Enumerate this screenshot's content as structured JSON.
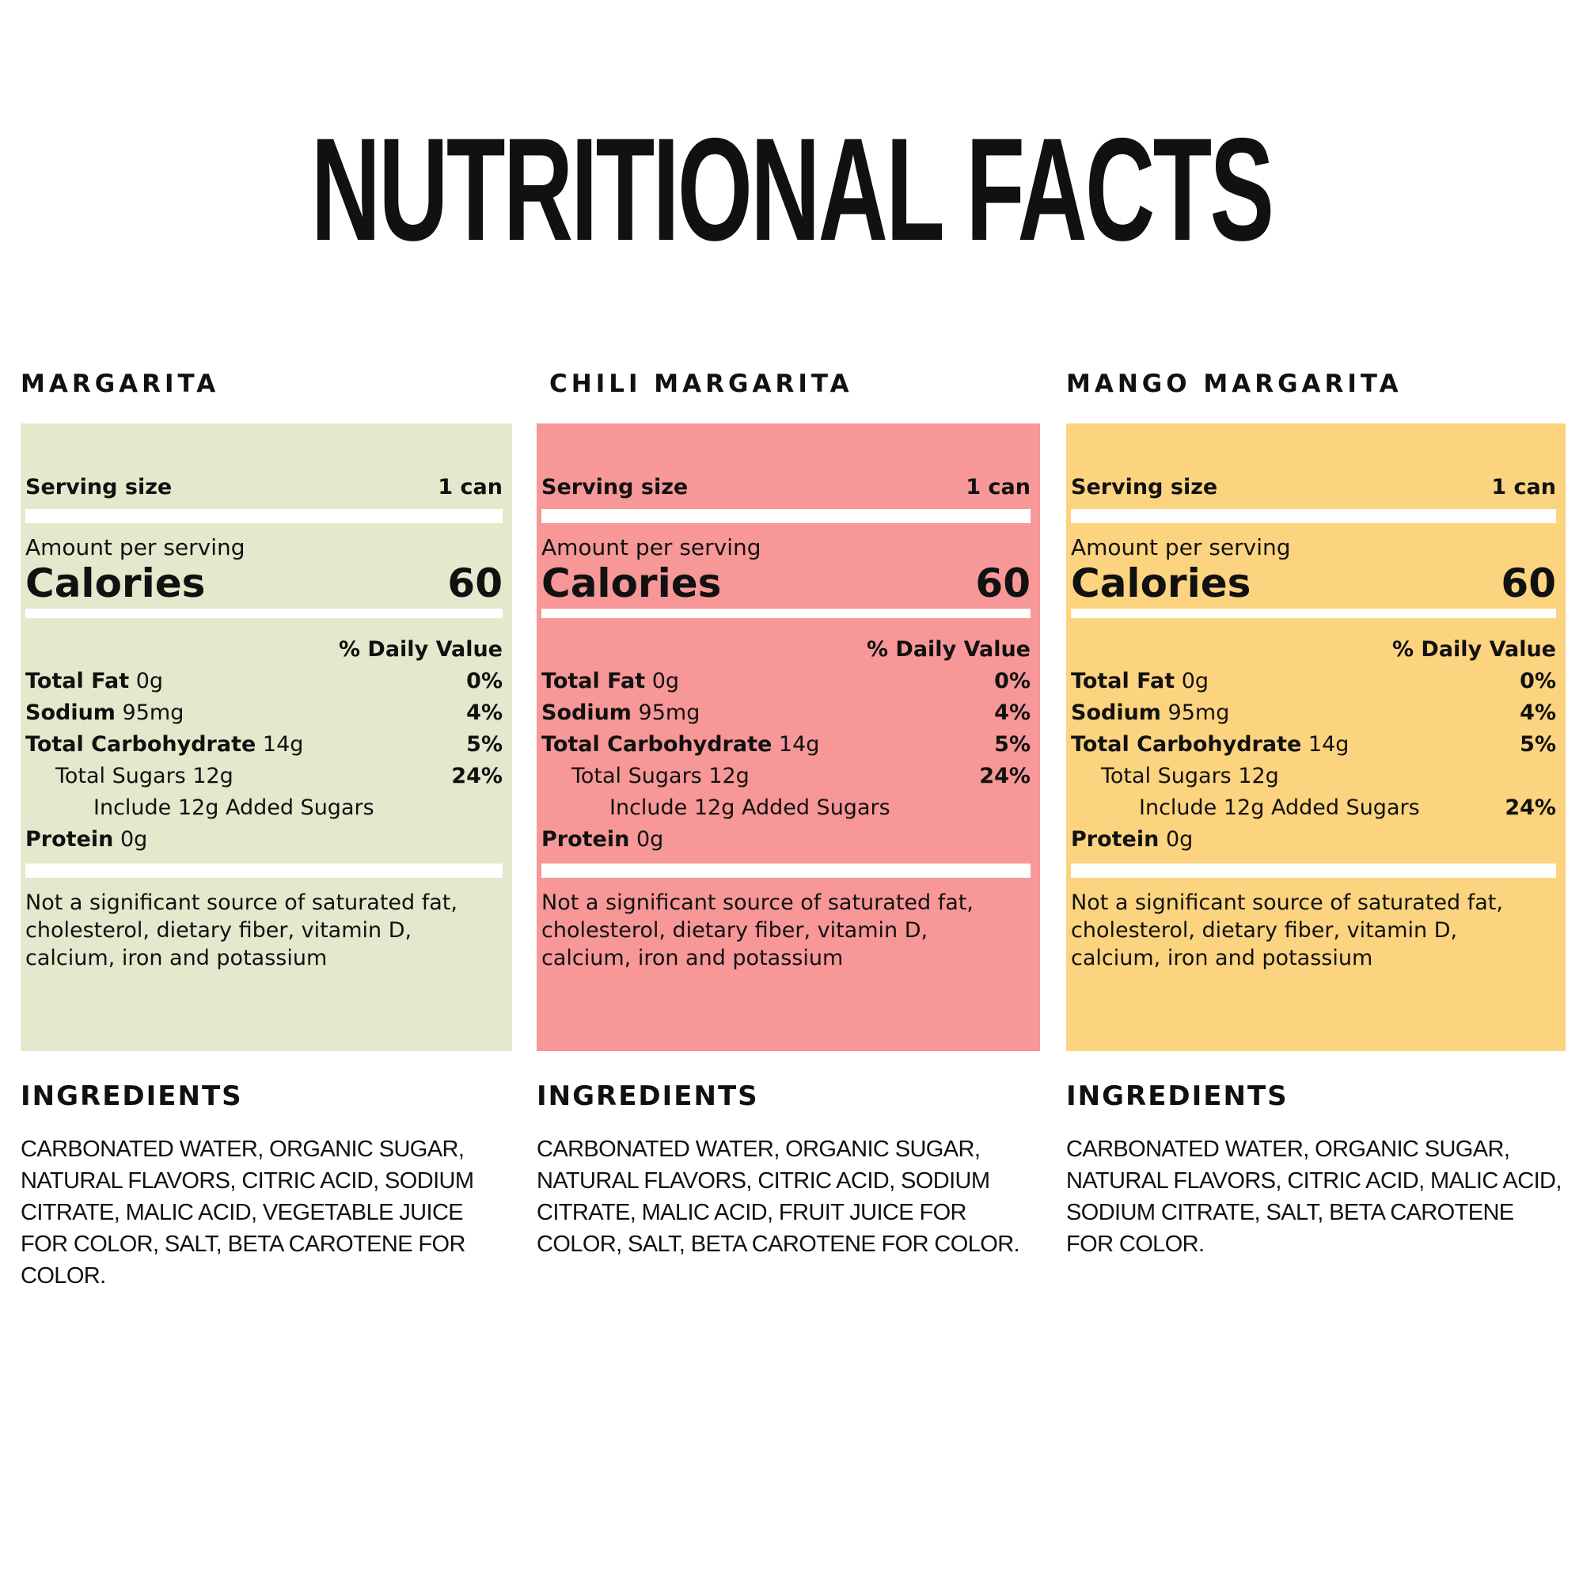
{
  "title": "NUTRITIONAL FACTS",
  "products": [
    {
      "name": "MARGARITA",
      "serving_label": "Serving size",
      "serving_value": "1 can",
      "amount_label": "Amount per serving",
      "calories_label": "Calories",
      "calories": "60",
      "dv_header": "% Daily Value",
      "nutrients": [
        {
          "label": "Total Fat",
          "amount": "0g",
          "dv": "0%"
        },
        {
          "label": "Sodium",
          "amount": "95mg",
          "dv": "4%"
        },
        {
          "label": "Total Carbohydrate",
          "amount": "14g",
          "dv": "5%"
        },
        {
          "text": "Total Sugars 12g",
          "dv": "24%"
        },
        {
          "text": "Include 12g Added Sugars"
        },
        {
          "label": "Protein",
          "amount": "0g"
        }
      ],
      "footnote": "Not a significant source of saturated fat, cholesterol, dietary fiber, vitamin D, calcium, iron and potassium",
      "ingredients_heading": "INGREDIENTS",
      "ingredients": "CARBONATED WATER, ORGANIC SUGAR, NATURAL FLAVORS, CITRIC ACID, SODIUM CITRATE, MALIC ACID, VEGETABLE JUICE FOR COLOR, SALT, BETA CAROTENE FOR COLOR."
    },
    {
      "name": "CHILI MARGARITA",
      "serving_label": "Serving size",
      "serving_value": "1 can",
      "amount_label": "Amount per serving",
      "calories_label": "Calories",
      "calories": "60",
      "dv_header": "% Daily Value",
      "nutrients": [
        {
          "label": "Total Fat",
          "amount": "0g",
          "dv": "0%"
        },
        {
          "label": "Sodium",
          "amount": "95mg",
          "dv": "4%"
        },
        {
          "label": "Total Carbohydrate",
          "amount": "14g",
          "dv": "5%"
        },
        {
          "text": "Total Sugars 12g",
          "dv": "24%"
        },
        {
          "text": "Include 12g Added Sugars"
        },
        {
          "label": "Protein",
          "amount": "0g"
        }
      ],
      "footnote": "Not a significant source of saturated fat, cholesterol, dietary fiber, vitamin D, calcium, iron and potassium",
      "ingredients_heading": "INGREDIENTS",
      "ingredients": "CARBONATED WATER, ORGANIC SUGAR, NATURAL FLAVORS, CITRIC ACID, SODIUM CITRATE, MALIC ACID, FRUIT JUICE FOR COLOR, SALT, BETA CAROTENE FOR COLOR."
    },
    {
      "name": "MANGO MARGARITA",
      "serving_label": "Serving size",
      "serving_value": "1 can",
      "amount_label": "Amount per serving",
      "calories_label": "Calories",
      "calories": "60",
      "dv_header": "% Daily Value",
      "nutrients": [
        {
          "label": "Total Fat",
          "amount": "0g",
          "dv": "0%"
        },
        {
          "label": "Sodium",
          "amount": "95mg",
          "dv": "4%"
        },
        {
          "label": "Total Carbohydrate",
          "amount": "14g",
          "dv": "5%"
        },
        {
          "text": "Total Sugars 12g"
        },
        {
          "text": "Include 12g Added Sugars",
          "dv": "24%"
        },
        {
          "label": "Protein",
          "amount": "0g"
        }
      ],
      "footnote": "Not a significant source of saturated fat, cholesterol, dietary fiber, vitamin D, calcium, iron and potassium",
      "ingredients_heading": "INGREDIENTS",
      "ingredients": "CARBONATED WATER, ORGANIC SUGAR, NATURAL FLAVORS, CITRIC ACID, MALIC ACID, SODIUM CITRATE, SALT, BETA CAROTENE FOR COLOR."
    }
  ]
}
